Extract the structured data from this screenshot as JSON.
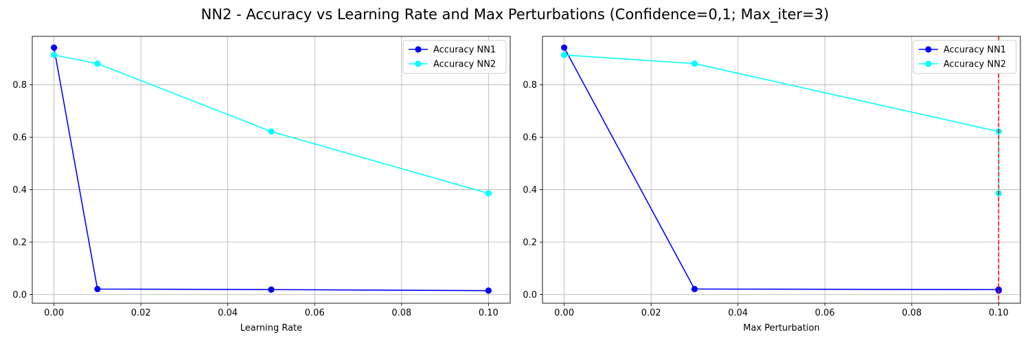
{
  "figure": {
    "title": "NN2 - Accuracy vs Learning Rate and Max Perturbations (Confidence=0,1; Max_iter=3)"
  },
  "chart_data": [
    {
      "type": "line",
      "xlabel": "Learning Rate",
      "ylabel": "",
      "xlim": [
        -0.005,
        0.105
      ],
      "ylim": [
        -0.033,
        0.985
      ],
      "xticks": [
        0.0,
        0.02,
        0.04,
        0.06,
        0.08,
        0.1
      ],
      "xtick_labels": [
        "0.00",
        "0.02",
        "0.04",
        "0.06",
        "0.08",
        "0.10"
      ],
      "yticks": [
        0.0,
        0.2,
        0.4,
        0.6,
        0.8
      ],
      "ytick_labels": [
        "0.0",
        "0.2",
        "0.4",
        "0.6",
        "0.8"
      ],
      "grid": true,
      "legend_position": "upper right",
      "series": [
        {
          "name": "Accuracy NN1",
          "color": "#0000ff",
          "marker": "circle",
          "x": [
            0.0,
            0.01,
            0.05,
            0.1
          ],
          "y": [
            0.942,
            0.021,
            0.019,
            0.015
          ]
        },
        {
          "name": "Accuracy NN2",
          "color": "#00ffff",
          "marker": "circle",
          "x": [
            0.0,
            0.01,
            0.05,
            0.1
          ],
          "y": [
            0.914,
            0.881,
            0.622,
            0.386
          ]
        }
      ],
      "vlines": []
    },
    {
      "type": "line",
      "xlabel": "Max Perturbation",
      "ylabel": "",
      "xlim": [
        -0.005,
        0.105
      ],
      "ylim": [
        -0.033,
        0.985
      ],
      "xticks": [
        0.0,
        0.02,
        0.04,
        0.06,
        0.08,
        0.1
      ],
      "xtick_labels": [
        "0.00",
        "0.02",
        "0.04",
        "0.06",
        "0.08",
        "0.10"
      ],
      "yticks": [
        0.0,
        0.2,
        0.4,
        0.6,
        0.8
      ],
      "ytick_labels": [
        "0.0",
        "0.2",
        "0.4",
        "0.6",
        "0.8"
      ],
      "grid": true,
      "legend_position": "upper right",
      "series": [
        {
          "name": "Accuracy NN1",
          "color": "#0000ff",
          "marker": "circle",
          "x": [
            0.0,
            0.03,
            0.1,
            0.1
          ],
          "y": [
            0.942,
            0.021,
            0.019,
            0.015
          ]
        },
        {
          "name": "Accuracy NN2",
          "color": "#00ffff",
          "marker": "circle",
          "x": [
            0.0,
            0.03,
            0.1,
            0.1
          ],
          "y": [
            0.914,
            0.881,
            0.622,
            0.386
          ]
        }
      ],
      "vlines": [
        {
          "x": 0.1,
          "color": "#ff0000",
          "style": "dashed"
        }
      ]
    }
  ]
}
